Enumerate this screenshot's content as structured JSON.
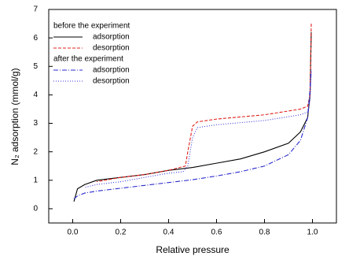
{
  "chart_data": {
    "type": "line",
    "x_label": "Relative pressure",
    "y_label": "N₂ adsorption (mmol/g)",
    "xlim": [
      -0.1,
      1.1
    ],
    "ylim": [
      -0.5,
      7
    ],
    "xticks": [
      {
        "value": 0,
        "label": "0.0"
      },
      0.2,
      0.4,
      0.6,
      0.8,
      {
        "value": 1,
        "label": "1.0"
      }
    ],
    "yticks": [
      0,
      1,
      2,
      3,
      4,
      5,
      6,
      7
    ],
    "legend": "upper left",
    "groups": [
      {
        "name": "before the experiment",
        "series": [
          {
            "name": "adsorption",
            "color": "#000000",
            "dash": "solid",
            "x": [
              0.005,
              0.02,
              0.05,
              0.1,
              0.2,
              0.3,
              0.4,
              0.5,
              0.6,
              0.7,
              0.8,
              0.9,
              0.95,
              0.98,
              0.99,
              0.995
            ],
            "values": [
              0.25,
              0.7,
              0.85,
              1.0,
              1.1,
              1.2,
              1.35,
              1.45,
              1.6,
              1.75,
              2.0,
              2.3,
              2.7,
              3.2,
              4.0,
              6.2
            ]
          },
          {
            "name": "desorption",
            "color": "#e0201b",
            "dash": "dashed",
            "x": [
              0.995,
              0.99,
              0.98,
              0.95,
              0.8,
              0.6,
              0.52,
              0.5,
              0.48,
              0.47,
              0.4,
              0.3,
              0.2,
              0.1
            ],
            "values": [
              6.5,
              4.0,
              3.6,
              3.5,
              3.3,
              3.15,
              3.05,
              2.9,
              2.0,
              1.5,
              1.35,
              1.2,
              1.1,
              0.95
            ]
          }
        ]
      },
      {
        "name": "after the experiment",
        "series": [
          {
            "name": "adsorption",
            "color": "#2b2bd0",
            "dash": "dashdot",
            "x": [
              0.005,
              0.02,
              0.05,
              0.1,
              0.2,
              0.3,
              0.4,
              0.5,
              0.6,
              0.7,
              0.8,
              0.9,
              0.95,
              0.98,
              0.99,
              0.995
            ],
            "values": [
              0.35,
              0.45,
              0.55,
              0.62,
              0.72,
              0.82,
              0.92,
              1.02,
              1.15,
              1.3,
              1.5,
              1.9,
              2.4,
              3.2,
              4.2,
              4.9
            ]
          },
          {
            "name": "desorption",
            "color": "#3a3ae0",
            "dash": "dotted",
            "x": [
              0.995,
              0.99,
              0.98,
              0.95,
              0.8,
              0.6,
              0.52,
              0.5,
              0.48,
              0.46,
              0.4,
              0.3,
              0.2,
              0.1,
              0.05
            ],
            "values": [
              4.8,
              3.8,
              3.4,
              3.3,
              3.1,
              2.95,
              2.85,
              2.5,
              1.5,
              1.3,
              1.25,
              1.1,
              0.95,
              0.85,
              0.75
            ]
          }
        ]
      }
    ]
  }
}
